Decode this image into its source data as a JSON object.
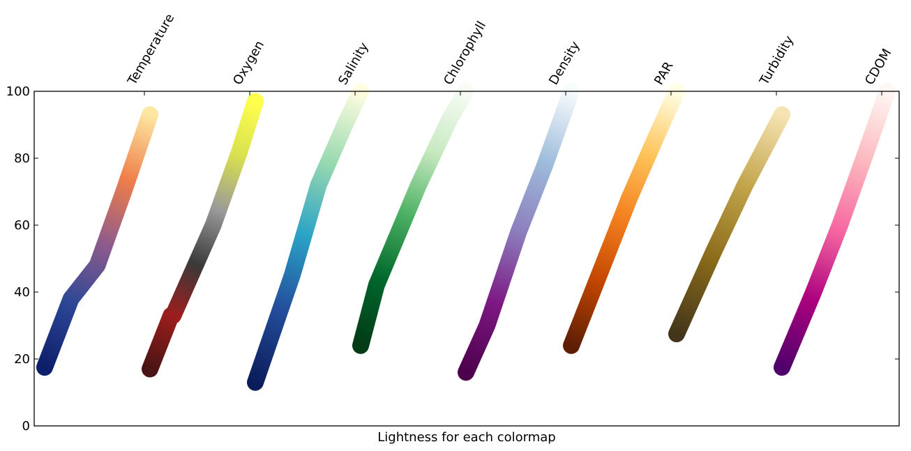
{
  "chart_data": {
    "type": "line",
    "title": "",
    "xlabel": "Lightness for each colormap",
    "ylabel": "",
    "ylim": [
      0,
      100
    ],
    "yticks": [
      0,
      20,
      40,
      60,
      80,
      100
    ],
    "grid": false,
    "legend": "none",
    "categories": [
      "Temperature",
      "Oxygen",
      "Salinity",
      "Chlorophyll",
      "Density",
      "PAR",
      "Turbidity",
      "CDOM"
    ],
    "x_range_per_category": [
      0,
      1
    ],
    "series": [
      {
        "x": [
          0,
          0.25,
          0.5,
          0.75,
          1
        ],
        "values": [
          17.5,
          38,
          48,
          70,
          93
        ],
        "colors": [
          "#0d1e6b",
          "#2c4796",
          "#8e5b8c",
          "#f07e4a",
          "#fde7a1"
        ]
      },
      {
        "x": [
          0,
          0.2,
          0.22,
          0.6,
          0.85,
          1
        ],
        "values": [
          17,
          33,
          33,
          60,
          82,
          97
        ],
        "colors": [
          "#4a1414",
          "#9e1d1d",
          "#3a3a3a",
          "#999999",
          "#d8e04f",
          "#ffff4d"
        ]
      },
      {
        "x": [
          0,
          0.35,
          0.6,
          0.85,
          1
        ],
        "values": [
          13,
          45,
          72,
          90,
          100
        ],
        "colors": [
          "#0b1c5a",
          "#244d9b",
          "#2aa3c6",
          "#99d9b0",
          "#fffee0"
        ]
      },
      {
        "x": [
          0,
          0.15,
          0.55,
          0.85,
          1
        ],
        "values": [
          24,
          42,
          72,
          92,
          100
        ],
        "colors": [
          "#033b16",
          "#00672c",
          "#4bb062",
          "#c7e9c0",
          "#f7fcf5"
        ]
      },
      {
        "x": [
          0,
          0.2,
          0.5,
          0.75,
          1
        ],
        "values": [
          16,
          30,
          58,
          78,
          100
        ],
        "colors": [
          "#4d004b",
          "#7d1883",
          "#8c7ebd",
          "#9ebcdb",
          "#f7fcfd"
        ]
      },
      {
        "x": [
          0,
          0.3,
          0.55,
          0.8,
          1
        ],
        "values": [
          24,
          48,
          68,
          86,
          100
        ],
        "colors": [
          "#5e1e06",
          "#c24600",
          "#f4801f",
          "#fec45a",
          "#ffffe5"
        ]
      },
      {
        "x": [
          0,
          0.35,
          0.65,
          1
        ],
        "values": [
          27.5,
          52,
          72,
          93
        ],
        "colors": [
          "#43351b",
          "#896a1a",
          "#c1a44a",
          "#f6e3b2"
        ]
      },
      {
        "x": [
          0,
          0.3,
          0.55,
          0.8,
          1
        ],
        "values": [
          17.5,
          40,
          60,
          82,
          100
        ],
        "colors": [
          "#4f006b",
          "#ac017e",
          "#f667a1",
          "#fcb8be",
          "#fff7f3"
        ]
      }
    ]
  }
}
